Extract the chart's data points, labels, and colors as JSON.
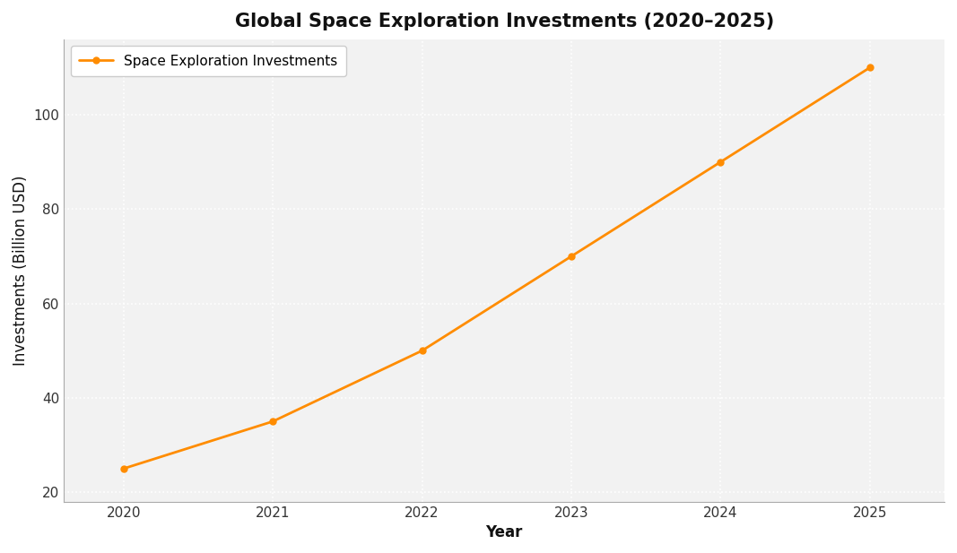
{
  "title": "Global Space Exploration Investments (2020–2025)",
  "xlabel": "Year",
  "ylabel": "Investments (Billion USD)",
  "legend_label": "Space Exploration Investments",
  "years": [
    2020,
    2021,
    2022,
    2023,
    2024,
    2025
  ],
  "values": [
    25,
    35,
    50,
    70,
    90,
    110
  ],
  "line_color": "#FF8C00",
  "marker": "o",
  "marker_size": 5,
  "line_width": 2.0,
  "plot_bg_color": "#F2F2F2",
  "fig_bg_color": "#FFFFFF",
  "grid_color": "#FFFFFF",
  "grid_linestyle": ":",
  "grid_linewidth": 1.2,
  "ylim": [
    18,
    116
  ],
  "xlim": [
    2019.6,
    2025.5
  ],
  "yticks": [
    20,
    40,
    60,
    80,
    100
  ],
  "xticks": [
    2020,
    2021,
    2022,
    2023,
    2024,
    2025
  ],
  "title_fontsize": 15,
  "axis_label_fontsize": 12,
  "tick_fontsize": 11,
  "legend_fontsize": 11,
  "spine_color": "#AAAAAA"
}
